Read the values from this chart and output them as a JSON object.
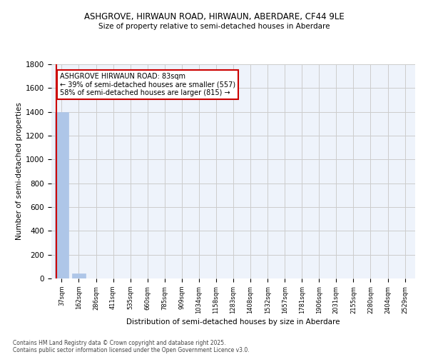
{
  "title_line1": "ASHGROVE, HIRWAUN ROAD, HIRWAUN, ABERDARE, CF44 9LE",
  "title_line2": "Size of property relative to semi-detached houses in Aberdare",
  "xlabel": "Distribution of semi-detached houses by size in Aberdare",
  "ylabel": "Number of semi-detached properties",
  "categories": [
    "37sqm",
    "162sqm",
    "286sqm",
    "411sqm",
    "535sqm",
    "660sqm",
    "785sqm",
    "909sqm",
    "1034sqm",
    "1158sqm",
    "1283sqm",
    "1408sqm",
    "1532sqm",
    "1657sqm",
    "1781sqm",
    "1906sqm",
    "2031sqm",
    "2155sqm",
    "2280sqm",
    "2404sqm",
    "2529sqm"
  ],
  "values": [
    1400,
    40,
    2,
    1,
    0,
    0,
    0,
    0,
    0,
    0,
    0,
    0,
    0,
    0,
    0,
    0,
    0,
    0,
    0,
    0,
    0
  ],
  "bar_color": "#aec6e8",
  "bar_edge_color": "#aec6e8",
  "annotation_title": "ASHGROVE HIRWAUN ROAD: 83sqm",
  "annotation_line2": "← 39% of semi-detached houses are smaller (557)",
  "annotation_line3": "58% of semi-detached houses are larger (815) →",
  "annotation_box_color": "#ffffff",
  "annotation_border_color": "#cc0000",
  "ylim": [
    0,
    1800
  ],
  "yticks": [
    0,
    200,
    400,
    600,
    800,
    1000,
    1200,
    1400,
    1600,
    1800
  ],
  "grid_color": "#cccccc",
  "bg_color": "#eef3fb",
  "footer_line1": "Contains HM Land Registry data © Crown copyright and database right 2025.",
  "footer_line2": "Contains public sector information licensed under the Open Government Licence v3.0."
}
